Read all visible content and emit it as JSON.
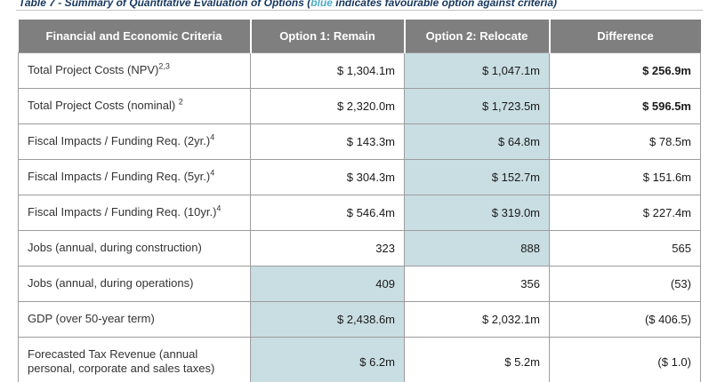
{
  "caption": {
    "prefix": "Table 7 - Summary of Quantitative Evaluation of Options (",
    "highlight_word": "blue",
    "suffix": " indicates favourable option against criteria)"
  },
  "colors": {
    "header_bg": "#7F7F7F",
    "header_text": "#FFFFFF",
    "favourable_highlight_bg": "#C9DEE3",
    "cell_border": "#9C9C9C",
    "caption_text": "#17375E",
    "caption_highlight_word": "#4BACC6",
    "caption_rule": "#C6C6C6"
  },
  "table": {
    "headers": {
      "criteria": "Financial and Economic Criteria",
      "option1": "Option 1: Remain",
      "option2": "Option 2: Relocate",
      "difference": "Difference"
    },
    "rows": [
      {
        "label": "Total Project Costs (NPV)",
        "sup": "2,3",
        "option1": "$ 1,304.1m",
        "option2": "$ 1,047.1m",
        "difference": "$ 256.9m",
        "highlight": "option2",
        "diff_bold": true
      },
      {
        "label": "Total Project Costs (nominal) ",
        "sup": "2",
        "option1": "$ 2,320.0m",
        "option2": "$ 1,723.5m",
        "difference": "$ 596.5m",
        "highlight": "option2",
        "diff_bold": true
      },
      {
        "label": "Fiscal Impacts / Funding Req. (2yr.)",
        "sup": "4",
        "option1": "$ 143.3m",
        "option2": "$ 64.8m",
        "difference": "$ 78.5m",
        "highlight": "option2",
        "diff_bold": false
      },
      {
        "label": "Fiscal Impacts / Funding Req. (5yr.)",
        "sup": "4",
        "option1": "$ 304.3m",
        "option2": "$ 152.7m",
        "difference": "$ 151.6m",
        "highlight": "option2",
        "diff_bold": false
      },
      {
        "label": "Fiscal Impacts / Funding Req. (10yr.)",
        "sup": "4",
        "option1": "$ 546.4m",
        "option2": "$ 319.0m",
        "difference": "$ 227.4m",
        "highlight": "option2",
        "diff_bold": false
      },
      {
        "label": "Jobs (annual, during construction)",
        "option1": "323",
        "option2": "888",
        "difference": "565",
        "highlight": "option2",
        "diff_bold": false
      },
      {
        "label": "Jobs (annual, during operations)",
        "option1": "409",
        "option2": "356",
        "difference": "(53)",
        "highlight": "option1",
        "diff_bold": false
      },
      {
        "label": "GDP (over 50-year term)",
        "option1": "$ 2,438.6m",
        "option2": "$ 2,032.1m",
        "difference": "($ 406.5)",
        "highlight": "option1",
        "diff_bold": false
      },
      {
        "label": "Forecasted Tax Revenue (annual personal, corporate and sales taxes)",
        "option1": "$ 6.2m",
        "option2": "$ 5.2m",
        "difference": "($ 1.0)",
        "highlight": "option1",
        "diff_bold": false
      }
    ]
  }
}
